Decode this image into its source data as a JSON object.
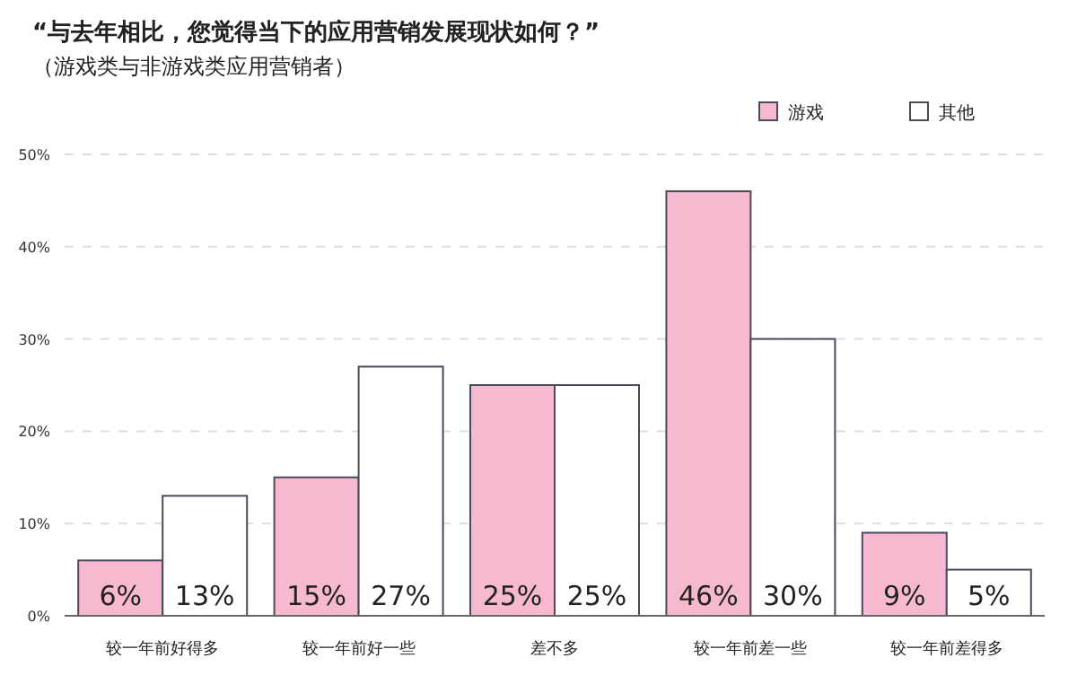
{
  "chart_data": {
    "type": "bar",
    "title": "“与去年相比，您觉得当下的应用营销发展现状如何？”",
    "subtitle": "（游戏类与非游戏类应用营销者）",
    "categories": [
      "较一年前好得多",
      "较一年前好一些",
      "差不多",
      "较一年前差一些",
      "较一年前差得多"
    ],
    "series": [
      {
        "name": "游戏",
        "color": "#f7b9cf",
        "values": [
          6,
          15,
          25,
          46,
          9
        ],
        "value_labels": [
          "6%",
          "15%",
          "25%",
          "46%",
          "9%"
        ]
      },
      {
        "name": "其他",
        "color": "#ffffff",
        "values": [
          13,
          27,
          25,
          30,
          5
        ],
        "value_labels": [
          "13%",
          "27%",
          "25%",
          "30%",
          "5%"
        ]
      }
    ],
    "ylim": [
      0,
      50
    ],
    "yticks": [
      {
        "value": 0,
        "label": "0%"
      },
      {
        "value": 10,
        "label": "10%"
      },
      {
        "value": 20,
        "label": "20%"
      },
      {
        "value": 30,
        "label": "30%"
      },
      {
        "value": 40,
        "label": "40%"
      },
      {
        "value": 50,
        "label": "50%"
      }
    ],
    "grid": "y",
    "legend": "top right"
  }
}
